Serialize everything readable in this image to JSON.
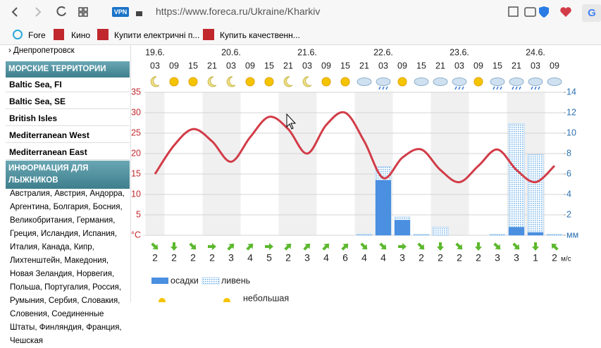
{
  "browser": {
    "vpn": "VPN",
    "url": "https://www.foreca.ru/Ukraine/Kharkiv",
    "bookmarks": [
      "Fore",
      "Кино",
      "Купити електричні п...",
      "Купить качественн..."
    ]
  },
  "sidebar": {
    "city": "Днепропетровск",
    "sea_header": "МОРСКИЕ ТЕРРИТОРИИ",
    "sea_links": [
      "Baltic Sea, FI",
      "Baltic Sea, SE",
      "British Isles",
      "Mediterranean West",
      "Mediterranean East"
    ],
    "ski_header": "ИНФОРМАЦИЯ ДЛЯ ЛЫЖНИКОВ",
    "ski_countries": "Австралия, Австрия, Андорра, Аргентина, Болгария, Босния, Великобритания, Германия, Греция, Исландия, Испания, Италия, Канада, Кипр, Лихтенштейн, Македония, Новая Зеландия, Норвегия, Польша, Португалия, Россия, Румыния, Сербия, Словакия, Словения, Соединенные Штаты, Финляндия, Франция, Чешская"
  },
  "chart_data": {
    "type": "line",
    "dates": [
      "19.6.",
      "20.6.",
      "21.6.",
      "22.6.",
      "23.6.",
      "24.6."
    ],
    "categories": [
      "03",
      "09",
      "15",
      "21",
      "03",
      "09",
      "15",
      "21",
      "03",
      "09",
      "15",
      "21",
      "03",
      "09",
      "15",
      "21",
      "03",
      "09",
      "15",
      "21",
      "03",
      "09"
    ],
    "temperature": {
      "color": "#d23c48",
      "values": [
        15,
        22,
        26,
        23,
        18,
        24,
        29,
        26,
        20,
        27,
        30,
        23,
        14,
        19,
        21,
        16,
        13,
        17,
        21,
        16,
        13,
        17
      ]
    },
    "ylim": [
      0,
      35
    ],
    "yticks": [
      {
        "value": 0,
        "label": "°C"
      },
      5,
      10,
      15,
      20,
      25,
      30,
      35
    ],
    "y2lim": [
      0,
      14
    ],
    "y2ticks": [
      {
        "value": 0,
        "label": "мм"
      },
      2,
      4,
      6,
      8,
      10,
      12,
      14
    ],
    "series": [
      {
        "name": "ливень",
        "color": "#8cc0ee",
        "axis": "y2",
        "values": [
          0,
          0,
          0,
          0,
          0,
          0,
          0,
          0,
          0,
          0,
          0,
          0.1,
          6.7,
          1.8,
          0.1,
          0.8,
          0,
          0,
          0.1,
          10.9,
          7.9,
          0.1
        ]
      },
      {
        "name": "осадки",
        "color": "#4a8fe0",
        "axis": "y2",
        "values": [
          0,
          0,
          0,
          0,
          0,
          0,
          0,
          0,
          0,
          0,
          0,
          0,
          5.4,
          1.5,
          0,
          0,
          0,
          0,
          0,
          0.8,
          0.3,
          0
        ]
      }
    ],
    "wind": {
      "unit": "м/с",
      "speeds": [
        2,
        2,
        2,
        2,
        3,
        4,
        5,
        2,
        3,
        4,
        6,
        4,
        4,
        3,
        2,
        2,
        2,
        2,
        3,
        3,
        1,
        2
      ],
      "directions": [
        135,
        180,
        135,
        90,
        45,
        45,
        90,
        45,
        45,
        45,
        45,
        135,
        135,
        90,
        135,
        180,
        135,
        180,
        135,
        135,
        180,
        315
      ]
    },
    "grid": true,
    "footer_text": "небольшая"
  }
}
